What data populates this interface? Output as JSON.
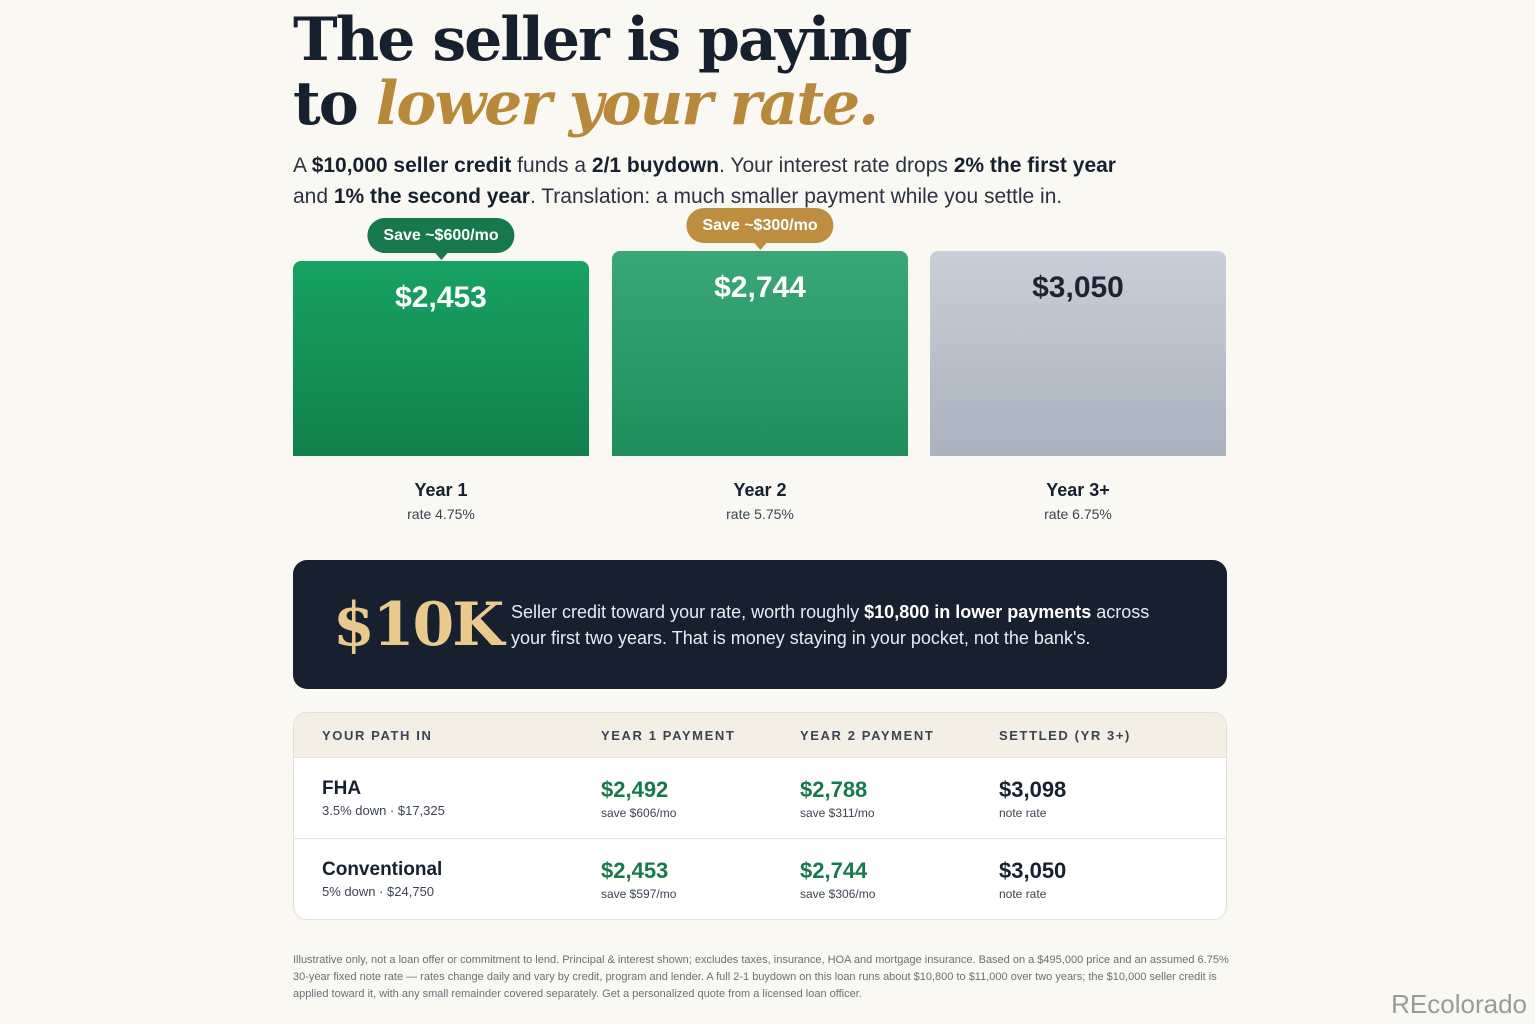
{
  "headline": {
    "line1": "The seller is paying",
    "line2_prefix": "to ",
    "line2_accent": "lower your rate."
  },
  "intro": {
    "p1": "A ",
    "b1": "$10,000 seller credit",
    "p2": " funds a ",
    "b2": "2/1 buydown",
    "p3": ". Your interest rate drops ",
    "b3": "2% the first year",
    "p4": " and ",
    "b4": "1% the second year",
    "p5": ". Translation: a much smaller payment while you settle in."
  },
  "bars": [
    {
      "amount": "$2,453",
      "year": "Year 1",
      "rate": "rate 4.75%",
      "badge": "Save ~$600/mo",
      "value": 2453
    },
    {
      "amount": "$2,744",
      "year": "Year 2",
      "rate": "rate 5.75%",
      "badge": "Save ~$300/mo",
      "value": 2744
    },
    {
      "amount": "$3,050",
      "year": "Year 3+",
      "rate": "rate 6.75%",
      "badge": "",
      "value": 3050
    }
  ],
  "credit": {
    "big": "$10K",
    "text_pre": "Seller credit toward your rate, worth roughly ",
    "text_bold": "$10,800 in lower payments",
    "text_post": " across your first two years. That is money staying in your pocket, not the bank's."
  },
  "table": {
    "headers": [
      "YOUR PATH IN",
      "YEAR 1 PAYMENT",
      "YEAR 2 PAYMENT",
      "SETTLED (YR 3+)"
    ],
    "rows": [
      {
        "name": "FHA",
        "sub": "3.5% down · $17,325",
        "y1": "$2,492",
        "y1_sub": "save $606/mo",
        "y2": "$2,788",
        "y2_sub": "save $311/mo",
        "y3": "$3,098",
        "y3_sub": "note rate"
      },
      {
        "name": "Conventional",
        "sub": "5% down · $24,750",
        "y1": "$2,453",
        "y1_sub": "save $597/mo",
        "y2": "$2,744",
        "y2_sub": "save $306/mo",
        "y3": "$3,050",
        "y3_sub": "note rate"
      }
    ]
  },
  "footnote": "Illustrative only, not a loan offer or commitment to lend. Principal & interest shown; excludes taxes, insurance, HOA and mortgage insurance. Based on a $495,000 price and an assumed 6.75% 30-year fixed note rate — rates change daily and vary by credit, program and lender. A full 2-1 buydown on this loan runs about $10,800 to $11,000 over two years; the $10,000 seller credit is applied toward it, with any small remainder covered separately. Get a personalized quote from a licensed loan officer.",
  "watermark": "REcolorado",
  "colors": {
    "green": "#17794b",
    "gold": "#bd8d40",
    "navy": "#16202e",
    "gray_bar": "#c9cfd8"
  }
}
